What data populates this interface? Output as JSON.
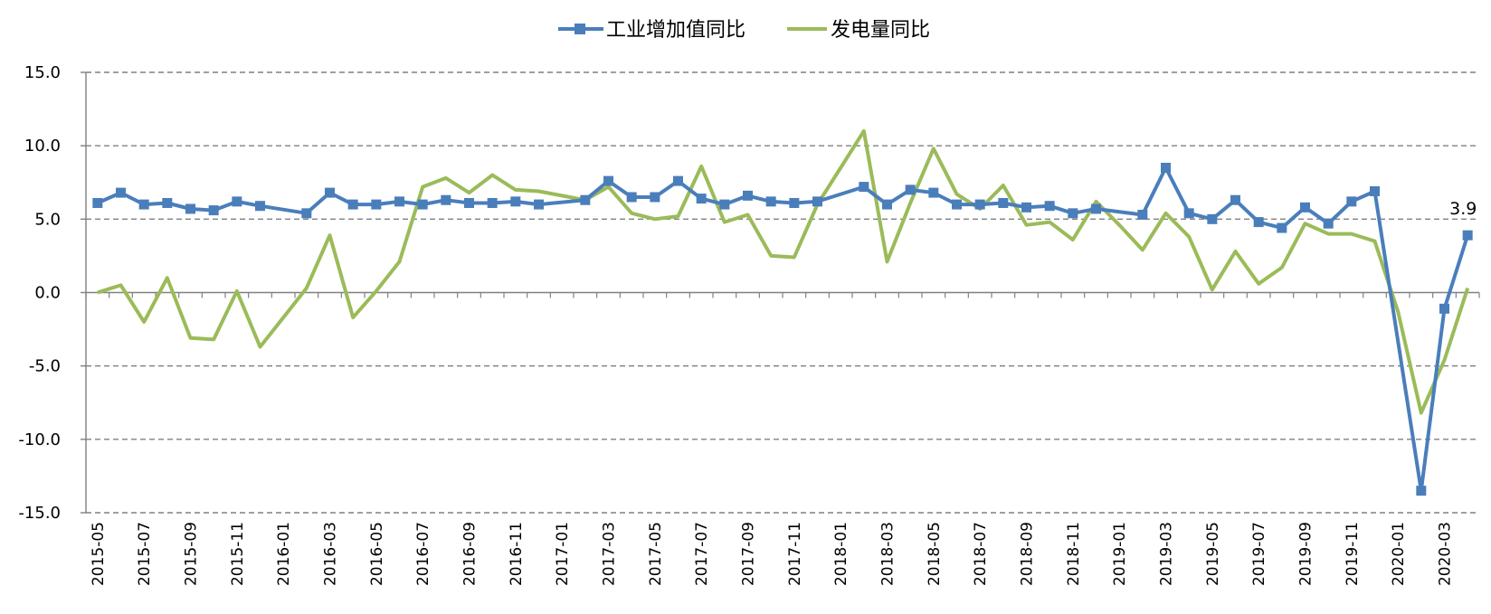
{
  "chart_data": {
    "type": "line",
    "title": "",
    "xlabel": "",
    "ylabel": "",
    "ylim": [
      -15,
      15
    ],
    "yticks": [
      15,
      10,
      5,
      0,
      -5,
      -10,
      -15
    ],
    "ytick_labels": [
      "15.0",
      "10.0",
      "5.0",
      "0.0",
      "-5.0",
      "-10.0",
      "-15.0"
    ],
    "grid": true,
    "legend_position": "top",
    "x": [
      "2015-05",
      "2015-06",
      "2015-07",
      "2015-08",
      "2015-09",
      "2015-10",
      "2015-11",
      "2015-12",
      "2016-01",
      "2016-02",
      "2016-03",
      "2016-04",
      "2016-05",
      "2016-06",
      "2016-07",
      "2016-08",
      "2016-09",
      "2016-10",
      "2016-11",
      "2016-12",
      "2017-01",
      "2017-02",
      "2017-03",
      "2017-04",
      "2017-05",
      "2017-06",
      "2017-07",
      "2017-08",
      "2017-09",
      "2017-10",
      "2017-11",
      "2017-12",
      "2018-01",
      "2018-02",
      "2018-03",
      "2018-04",
      "2018-05",
      "2018-06",
      "2018-07",
      "2018-08",
      "2018-09",
      "2018-10",
      "2018-11",
      "2018-12",
      "2019-01",
      "2019-02",
      "2019-03",
      "2019-04",
      "2019-05",
      "2019-06",
      "2019-07",
      "2019-08",
      "2019-09",
      "2019-10",
      "2019-11",
      "2019-12",
      "2020-01",
      "2020-02",
      "2020-03",
      "2020-04"
    ],
    "x_tick_labels": [
      "2015-05",
      "2015-07",
      "2015-09",
      "2015-11",
      "2016-01",
      "2016-03",
      "2016-05",
      "2016-07",
      "2016-09",
      "2016-11",
      "2017-01",
      "2017-03",
      "2017-05",
      "2017-07",
      "2017-09",
      "2017-11",
      "2018-01",
      "2018-03",
      "2018-05",
      "2018-07",
      "2018-09",
      "2018-11",
      "2019-01",
      "2019-03",
      "2019-05",
      "2019-07",
      "2019-09",
      "2019-11",
      "2020-01",
      "2020-03"
    ],
    "series": [
      {
        "name": "工业增加值同比",
        "color": "#4a7ebb",
        "marker": "square",
        "values": [
          6.1,
          6.8,
          6.0,
          6.1,
          5.7,
          5.6,
          6.2,
          5.9,
          null,
          5.4,
          6.8,
          6.0,
          6.0,
          6.2,
          6.0,
          6.3,
          6.1,
          6.1,
          6.2,
          6.0,
          null,
          6.3,
          7.6,
          6.5,
          6.5,
          7.6,
          6.4,
          6.0,
          6.6,
          6.2,
          6.1,
          6.2,
          null,
          7.2,
          6.0,
          7.0,
          6.8,
          6.0,
          6.0,
          6.1,
          5.8,
          5.9,
          5.4,
          5.7,
          null,
          5.3,
          8.5,
          5.4,
          5.0,
          6.3,
          4.8,
          4.4,
          5.8,
          4.7,
          6.2,
          6.9,
          null,
          -13.5,
          -1.1,
          3.9
        ]
      },
      {
        "name": "发电量同比",
        "color": "#9bbb59",
        "marker": "none",
        "values": [
          0.0,
          0.5,
          -2.0,
          1.0,
          -3.1,
          -3.2,
          0.1,
          -3.7,
          -1.7,
          0.3,
          3.9,
          -1.7,
          0.1,
          2.1,
          7.2,
          7.8,
          6.8,
          8.0,
          7.0,
          6.9,
          6.6,
          6.3,
          7.2,
          5.4,
          5.0,
          5.2,
          8.6,
          4.8,
          5.3,
          2.5,
          2.4,
          6.0,
          8.5,
          11.0,
          2.1,
          6.1,
          9.8,
          6.7,
          5.7,
          7.3,
          4.6,
          4.8,
          3.6,
          6.2,
          4.6,
          2.9,
          5.4,
          3.8,
          0.2,
          2.8,
          0.6,
          1.7,
          4.7,
          4.0,
          4.0,
          3.5,
          -1.3,
          -8.2,
          -4.6,
          0.3
        ]
      }
    ],
    "annotations": [
      {
        "series": 0,
        "x": "2020-04",
        "text": "3.9"
      }
    ]
  }
}
